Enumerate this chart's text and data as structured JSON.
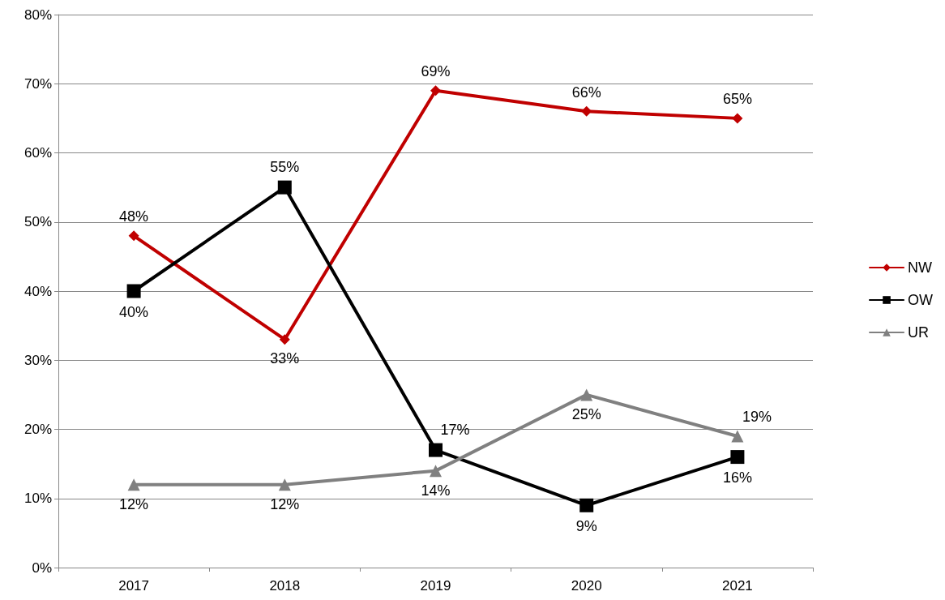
{
  "chart_data": {
    "type": "line",
    "categories": [
      "2017",
      "2018",
      "2019",
      "2020",
      "2021"
    ],
    "series": [
      {
        "name": "NW",
        "color": "#c00000",
        "marker": "diamond",
        "values": [
          48,
          33,
          69,
          66,
          65
        ],
        "value_labels": [
          "48%",
          "33%",
          "69%",
          "66%",
          "65%"
        ]
      },
      {
        "name": "OW",
        "color": "#000000",
        "marker": "square",
        "values": [
          40,
          55,
          17,
          9,
          16
        ],
        "value_labels": [
          "40%",
          "55%",
          "17%",
          "9%",
          "16%"
        ]
      },
      {
        "name": "UR",
        "color": "#808080",
        "marker": "triangle",
        "values": [
          12,
          12,
          14,
          25,
          19
        ],
        "value_labels": [
          "12%",
          "12%",
          "14%",
          "25%",
          "19%"
        ]
      }
    ],
    "ylim": [
      0,
      80
    ],
    "yticks": [
      {
        "value": 0,
        "label": "0%"
      },
      {
        "value": 10,
        "label": "10%"
      },
      {
        "value": 20,
        "label": "20%"
      },
      {
        "value": 30,
        "label": "30%"
      },
      {
        "value": 40,
        "label": "40%"
      },
      {
        "value": 50,
        "label": "50%"
      },
      {
        "value": 60,
        "label": "60%"
      },
      {
        "value": 70,
        "label": "70%"
      },
      {
        "value": 80,
        "label": "80%"
      }
    ],
    "grid": "y",
    "legend": "right",
    "line_style": "solid"
  }
}
